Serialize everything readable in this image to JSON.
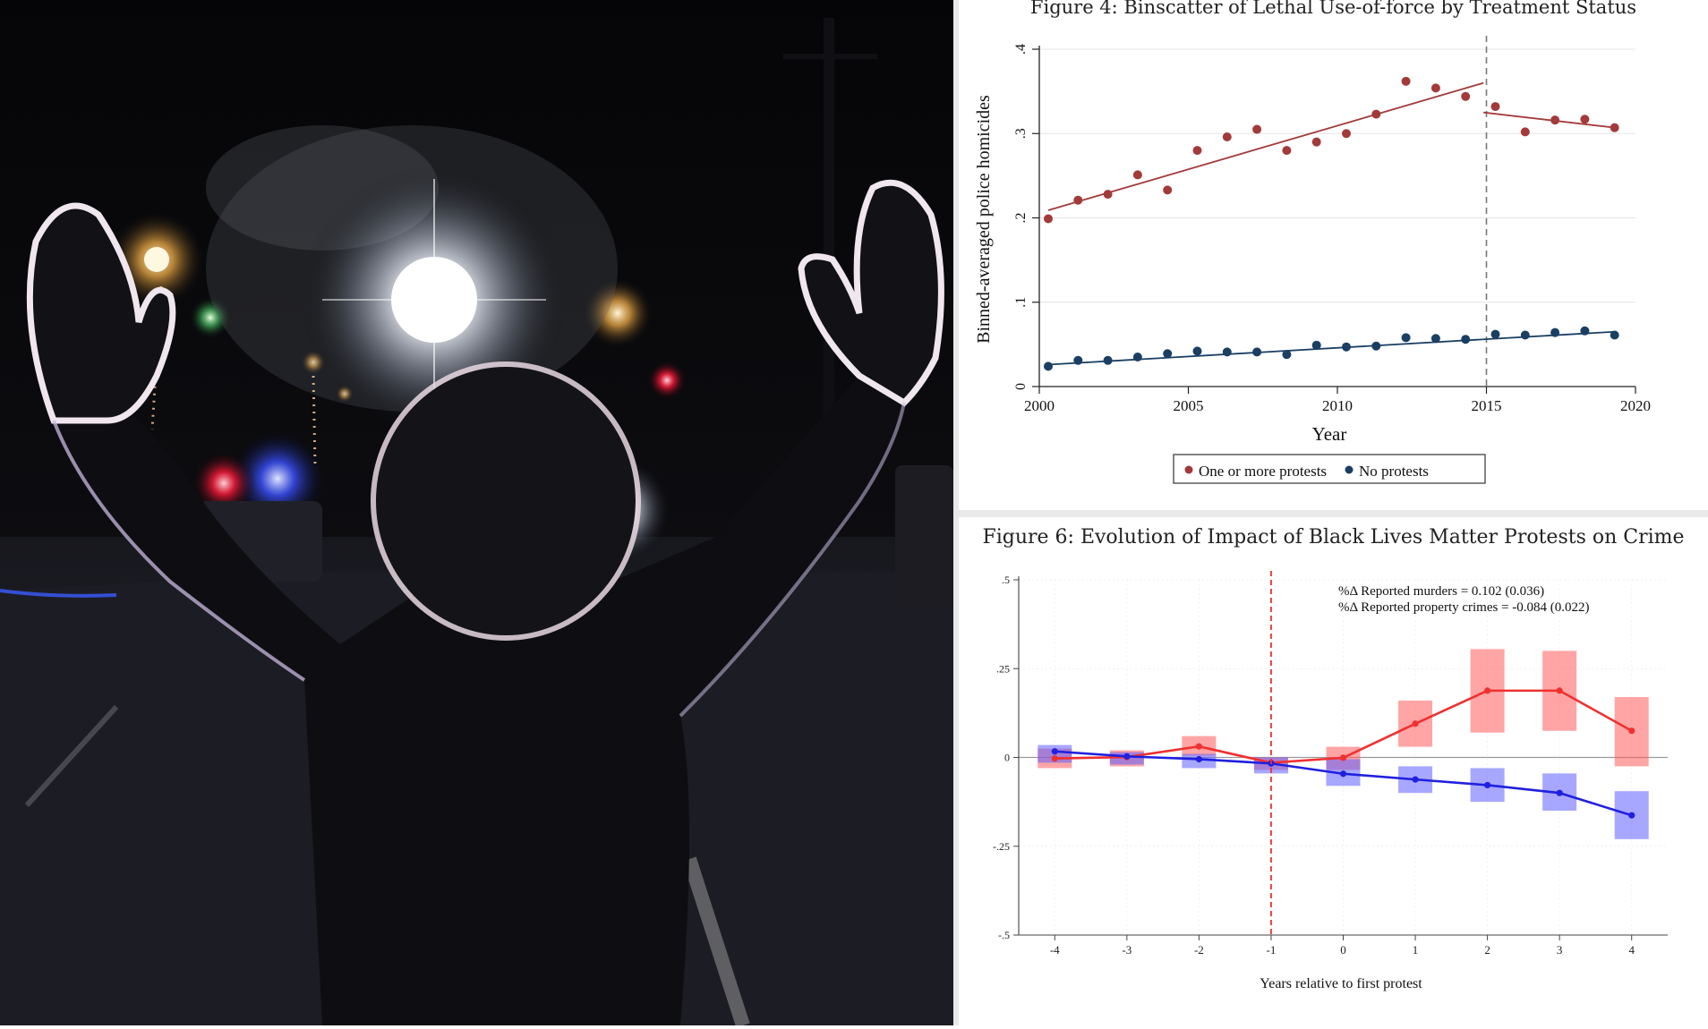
{
  "chart_data": [
    {
      "type": "scatter",
      "title": "Figure 4: Binscatter of Lethal Use-of-force by Treatment Status",
      "xlabel": "Year",
      "ylabel": "Binned-averaged police homicides",
      "xlim": [
        2000,
        2020
      ],
      "ylim": [
        0,
        0.4
      ],
      "x_ticks": [
        "2000",
        "2005",
        "2010",
        "2015",
        "2020"
      ],
      "y_ticks": [
        "0",
        ".1",
        ".2",
        ".3",
        ".4"
      ],
      "treatment_year": 2015,
      "legend": {
        "placement": "bottom",
        "entries": [
          "One or more protests",
          "No protests"
        ]
      },
      "colors": {
        "protests": "#a33a3a",
        "no_protests": "#1b3f63"
      },
      "series": [
        {
          "name": "One or more protests",
          "x": [
            2000.3,
            2001.3,
            2002.3,
            2003.3,
            2004.3,
            2005.3,
            2006.3,
            2007.3,
            2008.3,
            2009.3,
            2010.3,
            2011.3,
            2012.3,
            2013.3,
            2014.3,
            2015.3,
            2016.3,
            2017.3,
            2018.3,
            2019.3
          ],
          "y": [
            0.199,
            0.221,
            0.228,
            0.251,
            0.233,
            0.28,
            0.296,
            0.305,
            0.28,
            0.29,
            0.3,
            0.323,
            0.362,
            0.354,
            0.344,
            0.332,
            0.302,
            0.316,
            0.317,
            0.307
          ],
          "fit_pre": [
            [
              2000.3,
              0.209
            ],
            [
              2014.9,
              0.36
            ]
          ],
          "fit_post": [
            [
              2014.9,
              0.325
            ],
            [
              2019.3,
              0.307
            ]
          ]
        },
        {
          "name": "No protests",
          "x": [
            2000.3,
            2001.3,
            2002.3,
            2003.3,
            2004.3,
            2005.3,
            2006.3,
            2007.3,
            2008.3,
            2009.3,
            2010.3,
            2011.3,
            2012.3,
            2013.3,
            2014.3,
            2015.3,
            2016.3,
            2017.3,
            2018.3,
            2019.3
          ],
          "y": [
            0.024,
            0.031,
            0.031,
            0.035,
            0.039,
            0.042,
            0.041,
            0.041,
            0.038,
            0.049,
            0.047,
            0.048,
            0.058,
            0.057,
            0.056,
            0.062,
            0.061,
            0.064,
            0.066,
            0.061
          ],
          "fit": [
            [
              2000.3,
              0.026
            ],
            [
              2019.3,
              0.065
            ]
          ]
        }
      ]
    },
    {
      "type": "line",
      "title": "Figure 6: Evolution of Impact of Black Lives Matter Protests on Crime",
      "xlabel": "Years relative to first protest",
      "ylabel": "",
      "xlim": [
        -4.5,
        4.5
      ],
      "ylim": [
        -0.5,
        0.5
      ],
      "x_ticks": [
        "-4",
        "-3",
        "-2",
        "-1",
        "0",
        "1",
        "2",
        "3",
        "4"
      ],
      "y_ticks": [
        "-.5",
        "-.25",
        "0",
        ".25",
        ".5"
      ],
      "event_line_x": -1,
      "annotations": [
        "%Δ Reported murders = 0.102 (0.036)",
        "%Δ Reported property crimes = -0.084 (0.022)"
      ],
      "colors": {
        "murders": "#f03030",
        "property": "#2020e0"
      },
      "series": [
        {
          "name": "",
          "x": [
            -4,
            -3,
            -2,
            -1,
            0,
            1,
            2,
            3,
            4
          ],
          "y": [
            -0.003,
            0.001,
            0.031,
            -0.015,
            -0.001,
            0.095,
            0.188,
            0.188,
            0.075
          ],
          "ci_low": [
            -0.03,
            -0.025,
            0.005,
            -0.035,
            -0.035,
            0.03,
            0.07,
            0.075,
            -0.025
          ],
          "ci_high": [
            0.025,
            0.02,
            0.06,
            0.0,
            0.03,
            0.16,
            0.305,
            0.3,
            0.17
          ]
        },
        {
          "name": "",
          "x": [
            -4,
            -3,
            -2,
            -1,
            0,
            1,
            2,
            3,
            4
          ],
          "y": [
            0.017,
            0.003,
            -0.005,
            -0.017,
            -0.046,
            -0.062,
            -0.078,
            -0.1,
            -0.163
          ],
          "ci_low": [
            -0.015,
            -0.02,
            -0.03,
            -0.045,
            -0.08,
            -0.1,
            -0.125,
            -0.15,
            -0.23
          ],
          "ci_high": [
            0.035,
            0.015,
            0.01,
            0.0,
            -0.005,
            -0.025,
            -0.03,
            -0.045,
            -0.095
          ]
        }
      ]
    }
  ]
}
